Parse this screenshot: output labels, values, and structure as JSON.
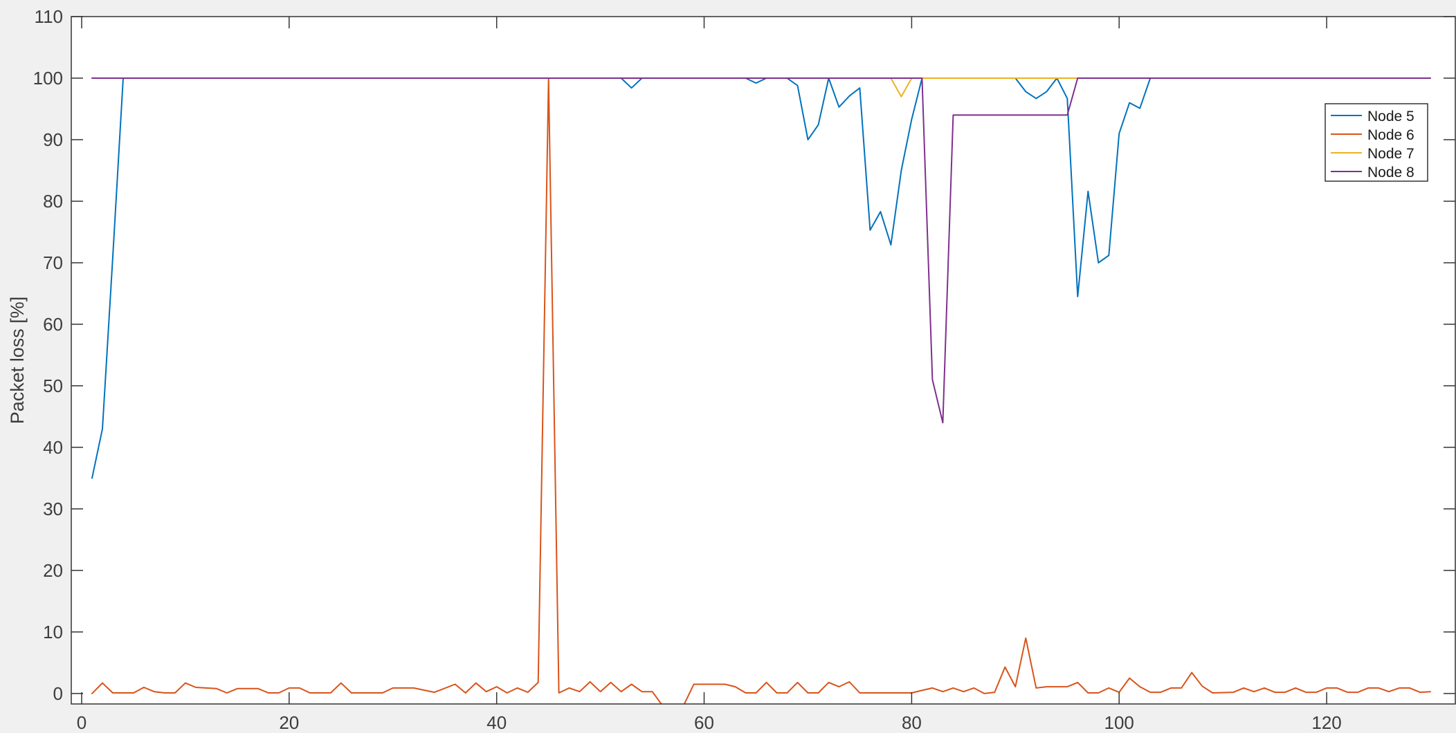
{
  "figure": {
    "background": "#f0f0f0",
    "plot_background": "#ffffff",
    "axis_color": "#333333",
    "text_color": "#3d3d3d"
  },
  "axes": {
    "ylabel": "Packet loss [%]",
    "x_ticks": [
      0,
      20,
      40,
      60,
      80,
      100,
      120
    ],
    "y_ticks": [
      0,
      10,
      20,
      30,
      40,
      50,
      60,
      70,
      80,
      90,
      100,
      110
    ],
    "xlim": [
      -1,
      132.4
    ],
    "ylim": [
      -1.7,
      110
    ]
  },
  "legend": {
    "entries": [
      {
        "label": "Node 5",
        "color": "#0072BD"
      },
      {
        "label": "Node 6",
        "color": "#D95319"
      },
      {
        "label": "Node 7",
        "color": "#EDB120"
      },
      {
        "label": "Node 8",
        "color": "#7E2F8E"
      }
    ]
  },
  "chart_data": {
    "type": "line",
    "title": "",
    "xlabel": "",
    "ylabel": "Packet loss [%]",
    "xlim": [
      -1,
      132.4
    ],
    "ylim": [
      -1.7,
      110
    ],
    "grid": false,
    "legend_position": "top-right-inside",
    "series": [
      {
        "name": "Node 5",
        "color": "#0072BD",
        "points": [
          [
            1,
            35
          ],
          [
            2,
            43
          ],
          [
            3,
            71
          ],
          [
            4,
            100
          ],
          [
            52,
            100
          ],
          [
            53,
            98.4
          ],
          [
            54,
            100
          ],
          [
            64,
            100
          ],
          [
            65,
            99.2
          ],
          [
            66,
            100
          ],
          [
            68,
            100
          ],
          [
            69,
            98.8
          ],
          [
            70,
            90
          ],
          [
            71,
            92.4
          ],
          [
            72,
            100
          ],
          [
            73,
            95.3
          ],
          [
            74,
            97.1
          ],
          [
            75,
            98.4
          ],
          [
            76,
            75.3
          ],
          [
            77,
            78.3
          ],
          [
            78,
            72.9
          ],
          [
            79,
            85
          ],
          [
            80,
            93.3
          ],
          [
            81,
            100
          ],
          [
            90,
            100
          ],
          [
            91,
            97.8
          ],
          [
            92,
            96.7
          ],
          [
            93,
            97.8
          ],
          [
            94,
            100
          ],
          [
            95,
            96.7
          ],
          [
            96,
            64.5
          ],
          [
            97,
            81.6
          ],
          [
            98,
            70
          ],
          [
            99,
            71.2
          ],
          [
            100,
            91
          ],
          [
            101,
            96
          ],
          [
            102,
            95.1
          ],
          [
            103,
            100
          ],
          [
            130,
            100
          ]
        ]
      },
      {
        "name": "Node 6",
        "color": "#D95319",
        "points": [
          [
            1,
            0
          ],
          [
            2,
            1.7
          ],
          [
            3,
            0.1
          ],
          [
            5,
            0.1
          ],
          [
            6,
            1.0
          ],
          [
            7,
            0.3
          ],
          [
            8,
            0.1
          ],
          [
            9,
            0.1
          ],
          [
            10,
            1.7
          ],
          [
            11,
            1.0
          ],
          [
            13,
            0.8
          ],
          [
            14,
            0.1
          ],
          [
            15,
            0.8
          ],
          [
            17,
            0.8
          ],
          [
            18,
            0.1
          ],
          [
            19,
            0.1
          ],
          [
            20,
            0.9
          ],
          [
            21,
            0.9
          ],
          [
            22,
            0.1
          ],
          [
            24,
            0.1
          ],
          [
            25,
            1.7
          ],
          [
            26,
            0.1
          ],
          [
            29,
            0.1
          ],
          [
            30,
            0.9
          ],
          [
            32,
            0.9
          ],
          [
            34,
            0.2
          ],
          [
            36,
            1.5
          ],
          [
            37,
            0.1
          ],
          [
            38,
            1.7
          ],
          [
            39,
            0.3
          ],
          [
            40,
            1.1
          ],
          [
            41,
            0.1
          ],
          [
            42,
            0.9
          ],
          [
            43,
            0.2
          ],
          [
            44,
            1.8
          ],
          [
            45,
            100
          ],
          [
            46,
            0.1
          ],
          [
            47,
            0.9
          ],
          [
            48,
            0.3
          ],
          [
            49,
            1.9
          ],
          [
            50,
            0.3
          ],
          [
            51,
            1.8
          ],
          [
            52,
            0.3
          ],
          [
            53,
            1.5
          ],
          [
            54,
            0.3
          ],
          [
            55,
            0.3
          ],
          [
            56,
            -2
          ],
          [
            58,
            -2
          ],
          [
            59,
            1.5
          ],
          [
            62,
            1.5
          ],
          [
            63,
            1.1
          ],
          [
            64,
            0.1
          ],
          [
            65,
            0.1
          ],
          [
            66,
            1.8
          ],
          [
            67,
            0.1
          ],
          [
            68,
            0.1
          ],
          [
            69,
            1.8
          ],
          [
            70,
            0.1
          ],
          [
            71,
            0.1
          ],
          [
            72,
            1.8
          ],
          [
            73,
            1.1
          ],
          [
            74,
            1.9
          ],
          [
            75,
            0.1
          ],
          [
            80,
            0.1
          ],
          [
            81,
            0.5
          ],
          [
            82,
            0.9
          ],
          [
            83,
            0.3
          ],
          [
            84,
            0.9
          ],
          [
            85,
            0.3
          ],
          [
            86,
            0.9
          ],
          [
            87,
            0
          ],
          [
            88,
            0.2
          ],
          [
            89,
            4.3
          ],
          [
            90,
            1.1
          ],
          [
            91,
            9
          ],
          [
            92,
            0.9
          ],
          [
            93,
            1.1
          ],
          [
            95,
            1.1
          ],
          [
            96,
            1.8
          ],
          [
            97,
            0.1
          ],
          [
            98,
            0.1
          ],
          [
            99,
            0.9
          ],
          [
            100,
            0.2
          ],
          [
            101,
            2.5
          ],
          [
            102,
            1.1
          ],
          [
            103,
            0.2
          ],
          [
            104,
            0.2
          ],
          [
            105,
            0.9
          ],
          [
            106,
            0.9
          ],
          [
            107,
            3.4
          ],
          [
            108,
            1.2
          ],
          [
            109,
            0.1
          ],
          [
            111,
            0.2
          ],
          [
            112,
            0.9
          ],
          [
            113,
            0.3
          ],
          [
            114,
            0.9
          ],
          [
            115,
            0.2
          ],
          [
            116,
            0.2
          ],
          [
            117,
            0.9
          ],
          [
            118,
            0.2
          ],
          [
            119,
            0.2
          ],
          [
            120,
            0.9
          ],
          [
            121,
            0.9
          ],
          [
            122,
            0.2
          ],
          [
            123,
            0.2
          ],
          [
            124,
            0.9
          ],
          [
            125,
            0.9
          ],
          [
            126,
            0.3
          ],
          [
            127,
            0.9
          ],
          [
            128,
            0.9
          ],
          [
            129,
            0.2
          ],
          [
            130,
            0.3
          ]
        ]
      },
      {
        "name": "Node 7",
        "color": "#EDB120",
        "points": [
          [
            1,
            100
          ],
          [
            78,
            100
          ],
          [
            79,
            97
          ],
          [
            80,
            100
          ],
          [
            130,
            100
          ]
        ]
      },
      {
        "name": "Node 8",
        "color": "#7E2F8E",
        "points": [
          [
            1,
            100
          ],
          [
            81,
            100
          ],
          [
            82,
            51
          ],
          [
            83,
            44
          ],
          [
            84,
            94
          ],
          [
            95,
            94
          ],
          [
            96,
            100
          ],
          [
            130,
            100
          ]
        ]
      }
    ]
  }
}
